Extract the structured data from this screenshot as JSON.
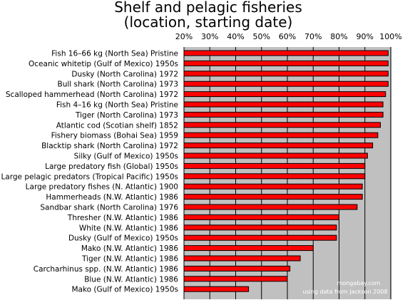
{
  "chart_data": {
    "type": "bar",
    "orientation": "horizontal",
    "title": "Shelf and pelagic fisheries",
    "subtitle": "(location, starting date)",
    "xlabel": "",
    "ylabel": "",
    "xlim": [
      20,
      100
    ],
    "ticks": [
      "20%",
      "30%",
      "40%",
      "50%",
      "60%",
      "70%",
      "80%",
      "90%",
      "100%"
    ],
    "tick_values": [
      20,
      30,
      40,
      50,
      60,
      70,
      80,
      90,
      100
    ],
    "grid": true,
    "legend": "none",
    "colors": {
      "bar": "#ff0000",
      "bar_stroke": "#000000",
      "plot_bg": "#c0c0c0"
    },
    "categories": [
      "Fish 16–66 kg (North Sea) Pristine",
      "Oceanic whitetip (Gulf of Mexico) 1950s",
      "Dusky (North Carolina) 1972",
      "Bull shark (North Carolina) 1973",
      "Scalloped hammerhead (North Carolina) 1972",
      "Fish 4–16 kg (North Sea) Pristine",
      "Tiger (North Carolina) 1973",
      "Atlantic cod (Scotian shelf) 1852",
      "Fishery biomass (Bohai Sea) 1959",
      "Blacktip shark (North Carolina) 1972",
      "Silky (Gulf of Mexico) 1950s",
      "Large predatory fish (Global) 1950s",
      "Large pelagic predators (Tropical Pacific) 1950s",
      "Large predatory fishes (N. Atlantic) 1900",
      "Hammerheads (N.W. Atlantic) 1986",
      "Sandbar shark (North Carolina) 1976",
      "Thresher (N.W. Atlantic) 1986",
      "White (N.W. Atlantic) 1986",
      "Dusky (Gulf of Mexico) 1950s",
      "Mako (N.W. Atlantic) 1986",
      "Tiger (N.W. Atlantic) 1986",
      "Carcharhinus spp. (N.W. Atlantic) 1986",
      "Blue (N.W. Atlantic) 1986",
      "Mako (Gulf of Mexico) 1950s"
    ],
    "values": [
      99,
      99,
      99,
      99,
      98,
      97,
      97,
      96,
      95,
      93,
      91,
      90,
      90,
      89,
      89,
      87,
      80,
      79,
      79,
      70,
      65,
      61,
      60,
      45
    ],
    "annotations": [
      "mongabay.com",
      "using data from Jackson 2008"
    ]
  }
}
